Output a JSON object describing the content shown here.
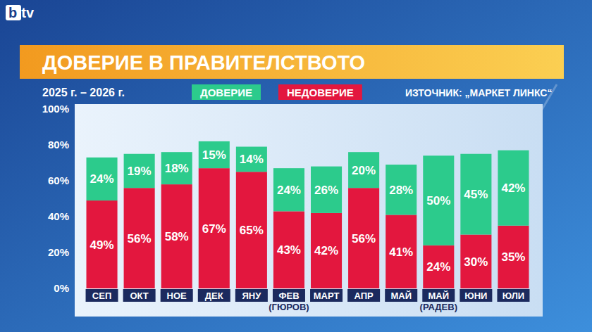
{
  "header": {
    "logo": "btv"
  },
  "chart_data": {
    "type": "bar",
    "stacked": true,
    "title": "ДОВЕРИЕ В ПРАВИТЕЛСТВОТО",
    "subtitle": "2025 г. – 2026 г.",
    "annotations": [
      "ИЗТОЧНИК: „МАРКЕТ ЛИНКС“"
    ],
    "categories": [
      "СЕП",
      "ОКТ",
      "НОЕ",
      "ДЕК",
      "ЯНУ",
      "ФЕВ\n(ГЮРОВ)",
      "МАРТ",
      "АПР",
      "МАЙ",
      "МАЙ\n(РАДЕВ)",
      "ЮНИ",
      "ЮЛИ"
    ],
    "series": [
      {
        "name": "НЕДОВЕРИЕ",
        "color": "#e3173e",
        "values": [
          49,
          56,
          58,
          67,
          65,
          43,
          42,
          56,
          41,
          24,
          30,
          35
        ],
        "value_labels": [
          "49%",
          "56%",
          "58%",
          "67%",
          "65%",
          "43%",
          "42%",
          "56%",
          "41%",
          "24%",
          "30%",
          "35%"
        ]
      },
      {
        "name": "ДОВЕРИЕ",
        "color": "#2ccb8c",
        "values": [
          24,
          19,
          18,
          15,
          14,
          24,
          26,
          20,
          28,
          50,
          45,
          42
        ],
        "value_labels": [
          "24%",
          "19%",
          "18%",
          "15%",
          "14%",
          "24%",
          "26%",
          "20%",
          "28%",
          "50%",
          "45%",
          "42%"
        ]
      }
    ],
    "ylim": [
      0,
      100
    ],
    "yticks": [
      {
        "value": 0,
        "label": "0%"
      },
      {
        "value": 20,
        "label": "20%"
      },
      {
        "value": 40,
        "label": "40%"
      },
      {
        "value": 60,
        "label": "60%"
      },
      {
        "value": 80,
        "label": "80%"
      },
      {
        "value": 100,
        "label": "100%"
      }
    ],
    "grid": false,
    "data_labels": true,
    "legend": "top"
  }
}
